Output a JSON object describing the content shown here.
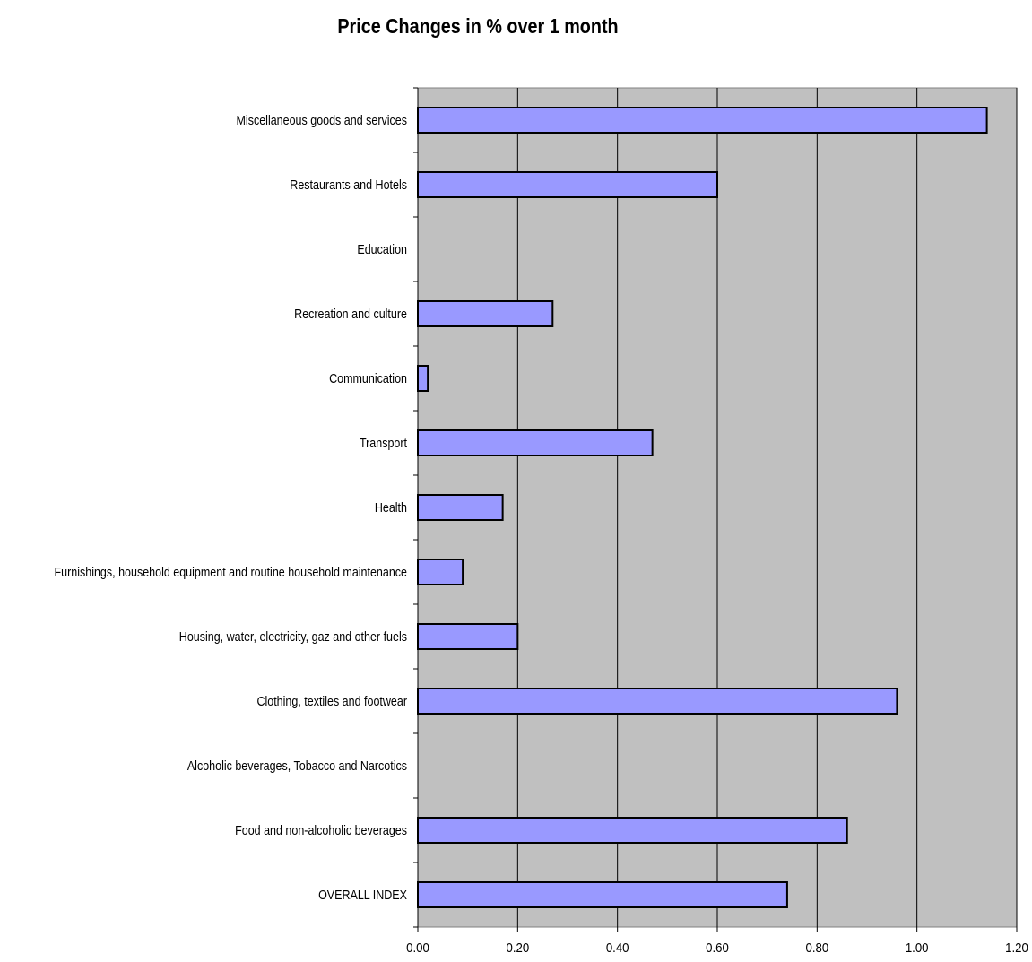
{
  "chart_data": {
    "type": "bar",
    "orientation": "horizontal",
    "title": "Price Changes in % over 1 month",
    "xlabel": "",
    "ylabel": "",
    "xlim": [
      0,
      1.2
    ],
    "x_ticks": [
      "0.00",
      "0.20",
      "0.40",
      "0.60",
      "0.80",
      "1.00",
      "1.20"
    ],
    "grid": "vertical",
    "legend": "none",
    "categories": [
      "Miscellaneous goods and services",
      "Restaurants and Hotels",
      "Education",
      "Recreation and culture",
      "Communication",
      "Transport",
      "Health",
      "Furnishings, household equipment and routine household maintenance",
      "Housing, water, electricity, gaz and other fuels",
      "Clothing, textiles and footwear",
      "Alcoholic beverages, Tobacco and Narcotics",
      "Food and non-alcoholic beverages",
      "OVERALL INDEX"
    ],
    "values": [
      1.14,
      0.6,
      0,
      0.27,
      0.02,
      0.47,
      0.17,
      0.09,
      0.2,
      0.96,
      0,
      0.86,
      0.74
    ],
    "colors": {
      "bar_fill": "#9999ff",
      "bar_stroke": "#000000",
      "plot_background": "#c0c0c0",
      "gridline": "#000000"
    }
  }
}
